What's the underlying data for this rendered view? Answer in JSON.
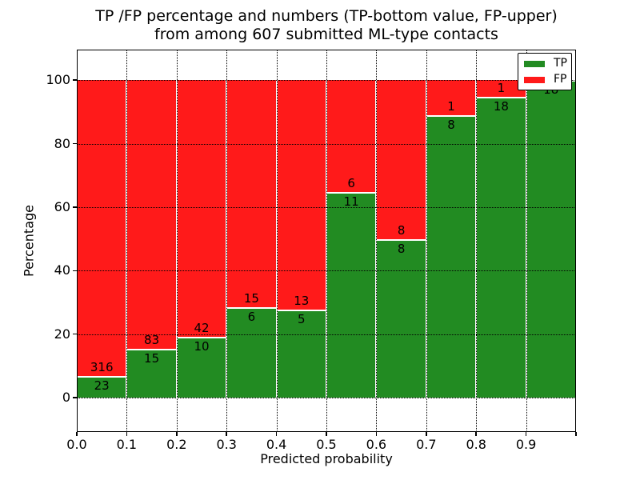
{
  "title": {
    "line1": "TP /FP percentage and numbers (TP-bottom value, FP-upper)",
    "line2": "from among 607 submitted ML-type contacts"
  },
  "axes": {
    "xlabel": "Predicted probability",
    "ylabel": "Percentage",
    "x_tick_labels": [
      "0.0",
      "0.1",
      "0.2",
      "0.3",
      "0.4",
      "0.5",
      "0.6",
      "0.7",
      "0.8",
      "0.9"
    ],
    "y_tick_labels": [
      "0",
      "20",
      "40",
      "60",
      "80",
      "100"
    ],
    "y_tick_values": [
      0,
      20,
      40,
      60,
      80,
      100
    ]
  },
  "legend": {
    "items": [
      {
        "label": "TP",
        "color": "#228b22"
      },
      {
        "label": "FP",
        "color": "#ff1a1a"
      }
    ]
  },
  "chart_data": {
    "type": "bar",
    "subtype": "stacked-100-percent-histogram",
    "title": "TP /FP percentage and numbers (TP-bottom value, FP-upper) from among 607 submitted ML-type contacts",
    "xlabel": "Predicted probability",
    "ylabel": "Percentage",
    "total_contacts_shown_in_title": 607,
    "bin_edges": [
      0.0,
      0.1,
      0.2,
      0.3,
      0.4,
      0.5,
      0.6,
      0.7,
      0.8,
      0.9,
      1.0
    ],
    "categories": [
      "0.0-0.1",
      "0.1-0.2",
      "0.2-0.3",
      "0.3-0.4",
      "0.4-0.5",
      "0.5-0.6",
      "0.6-0.7",
      "0.7-0.8",
      "0.8-0.9",
      "0.9-1.0"
    ],
    "series": [
      {
        "name": "TP",
        "color": "#228b22",
        "counts": [
          23,
          15,
          10,
          6,
          5,
          11,
          8,
          8,
          18,
          18
        ]
      },
      {
        "name": "FP",
        "color": "#ff1a1a",
        "counts": [
          316,
          83,
          42,
          15,
          13,
          6,
          8,
          1,
          1,
          0
        ]
      }
    ],
    "bars_normalized_to_percent": true,
    "tp_percent_per_bin": [
      6.8,
      15.3,
      19.2,
      28.6,
      27.8,
      64.7,
      50.0,
      88.9,
      94.7,
      100.0
    ],
    "xlim": [
      0.0,
      1.0
    ],
    "ylim": [
      -10.8,
      109.6
    ],
    "grid": "dotted-black-both-axes",
    "legend_position": "upper right",
    "annotation_note": "counts printed at each bar's TP/FP boundary: TP count below the boundary, FP count above"
  }
}
